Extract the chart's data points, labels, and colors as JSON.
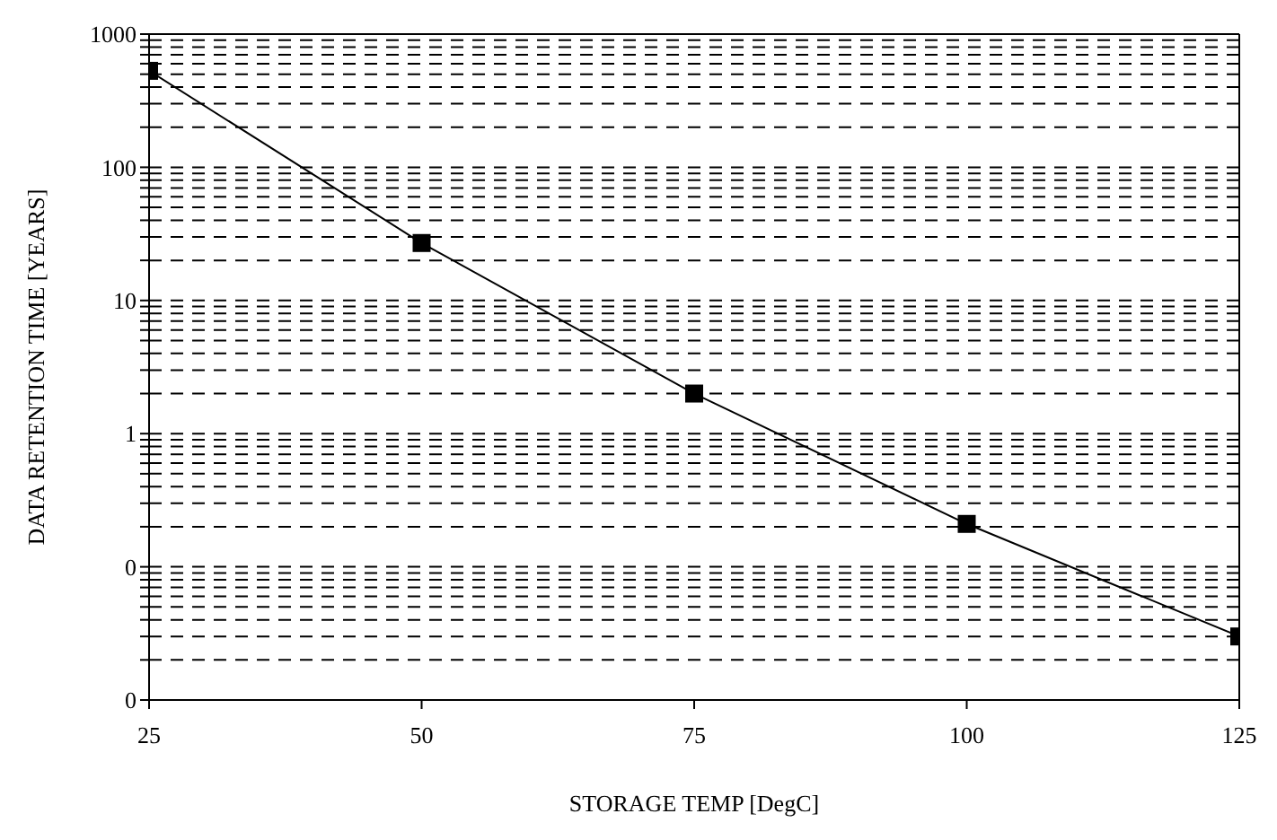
{
  "chart_data": {
    "type": "line",
    "xlabel": "STORAGE TEMP [DegC]",
    "ylabel": "DATA RETENTION TIME [YEARS]",
    "x": [
      25,
      50,
      75,
      100,
      125
    ],
    "series": [
      {
        "color": "#000000",
        "values": [
          530,
          27,
          2,
          0.21,
          0.03
        ]
      }
    ],
    "xlim": [
      25,
      125
    ],
    "xticks": [
      25,
      50,
      75,
      100,
      125
    ],
    "ylim": [
      0.01,
      1000
    ],
    "log": "y",
    "yticks": [
      {
        "value": 0.01,
        "label": "0"
      },
      {
        "value": 0.02,
        "label": null
      },
      {
        "value": 0.03,
        "label": null
      },
      {
        "value": 0.04,
        "label": null
      },
      {
        "value": 0.05,
        "label": null
      },
      {
        "value": 0.06,
        "label": null
      },
      {
        "value": 0.07,
        "label": null
      },
      {
        "value": 0.08,
        "label": null
      },
      {
        "value": 0.09,
        "label": null
      },
      {
        "value": 0.1,
        "label": "0"
      },
      {
        "value": 0.2,
        "label": null
      },
      {
        "value": 0.3,
        "label": null
      },
      {
        "value": 0.4,
        "label": null
      },
      {
        "value": 0.5,
        "label": null
      },
      {
        "value": 0.6,
        "label": null
      },
      {
        "value": 0.7,
        "label": null
      },
      {
        "value": 0.8,
        "label": null
      },
      {
        "value": 0.9,
        "label": null
      },
      1,
      {
        "value": 2,
        "label": null
      },
      {
        "value": 3,
        "label": null
      },
      {
        "value": 4,
        "label": null
      },
      {
        "value": 5,
        "label": null
      },
      {
        "value": 6,
        "label": null
      },
      {
        "value": 7,
        "label": null
      },
      {
        "value": 8,
        "label": null
      },
      {
        "value": 9,
        "label": null
      },
      10,
      {
        "value": 20,
        "label": null
      },
      {
        "value": 30,
        "label": null
      },
      {
        "value": 40,
        "label": null
      },
      {
        "value": 50,
        "label": null
      },
      {
        "value": 60,
        "label": null
      },
      {
        "value": 70,
        "label": null
      },
      {
        "value": 80,
        "label": null
      },
      {
        "value": 90,
        "label": null
      },
      100,
      {
        "value": 200,
        "label": null
      },
      {
        "value": 300,
        "label": null
      },
      {
        "value": 400,
        "label": null
      },
      {
        "value": 500,
        "label": null
      },
      {
        "value": 600,
        "label": null
      },
      {
        "value": 700,
        "label": null
      },
      {
        "value": 800,
        "label": null
      },
      {
        "value": 900,
        "label": null
      },
      1000
    ],
    "grid": "y",
    "marker": "square",
    "line_style": "solid"
  }
}
